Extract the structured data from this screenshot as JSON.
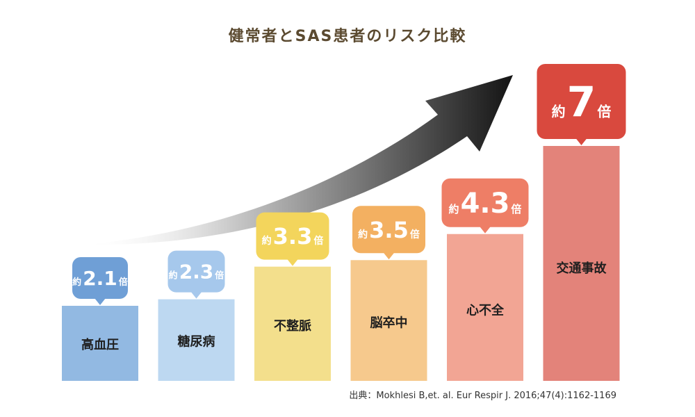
{
  "title": "健常者とSAS患者のリスク比較",
  "source": "出典：Mokhlesi B,et. al. Eur Respir J. 2016;47(4):1162-1169",
  "chart_data": {
    "type": "bar",
    "title": "健常者とSAS患者のリスク比較",
    "categories": [
      "高血圧",
      "糖尿病",
      "不整脈",
      "脳卒中",
      "心不全",
      "交通事故"
    ],
    "values": [
      2.1,
      2.3,
      3.3,
      3.5,
      4.3,
      7
    ],
    "value_prefix": "約",
    "value_suffix": "倍",
    "value_labels": [
      "2.1",
      "2.3",
      "3.3",
      "3.5",
      "4.3",
      "7"
    ],
    "bar_colors": [
      "#92b9e2",
      "#bdd8f1",
      "#f3df8c",
      "#f6c98d",
      "#f2a594",
      "#e3837a"
    ],
    "badge_colors": [
      "#6f9fd6",
      "#a6c8ec",
      "#f3d55c",
      "#f3b061",
      "#ee7e66",
      "#d9493e"
    ],
    "ylim": [
      0,
      7
    ],
    "grid": false,
    "legend": "none",
    "trend_arrow": true
  }
}
